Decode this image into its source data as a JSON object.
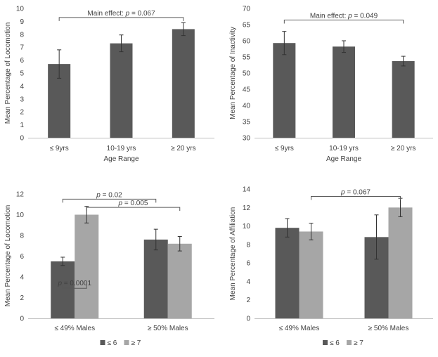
{
  "chart_data": [
    {
      "type": "bar",
      "panel": "top-left",
      "categories": [
        "≤ 9yrs",
        "10-19 yrs",
        "≥ 20 yrs"
      ],
      "series": [
        {
          "name": "Locomotion",
          "values": [
            5.7,
            7.3,
            8.4
          ],
          "errors": [
            1.1,
            0.65,
            0.5
          ],
          "color": "#595959"
        }
      ],
      "xlabel": "Age Range",
      "ylabel": "Mean Percentage of Locomotion",
      "ylim": [
        0,
        10
      ],
      "yticks": [
        0,
        1,
        2,
        3,
        4,
        5,
        6,
        7,
        8,
        9,
        10
      ],
      "annotations": [
        {
          "prefix": "Main effect: ",
          "p": "p",
          "suffix": " = 0.067",
          "from": 0,
          "to": 2,
          "level": 9.3
        }
      ]
    },
    {
      "type": "bar",
      "panel": "top-right",
      "categories": [
        "≤ 9yrs",
        "10-19 yrs",
        "≥ 20 yrs"
      ],
      "series": [
        {
          "name": "Inactivity",
          "values": [
            59.3,
            58.2,
            53.7
          ],
          "errors": [
            3.6,
            1.8,
            1.5
          ],
          "color": "#595959"
        }
      ],
      "xlabel": "Age Range",
      "ylabel": "Mean Percentage of Inactivity",
      "ylim": [
        30,
        70
      ],
      "yticks": [
        30,
        35,
        40,
        45,
        50,
        55,
        60,
        65,
        70
      ],
      "annotations": [
        {
          "prefix": "Main effect: ",
          "p": "p",
          "suffix": " = 0.049",
          "from": 0,
          "to": 2,
          "level": 66.4
        }
      ]
    },
    {
      "type": "bar",
      "panel": "bottom-left",
      "categories": [
        "≤ 49% Males",
        "≥ 50% Males"
      ],
      "series": [
        {
          "name": "≤ 6",
          "values": [
            5.5,
            7.6
          ],
          "errors": [
            0.4,
            1.0
          ],
          "color": "#595959"
        },
        {
          "name": "≥ 7",
          "values": [
            10.0,
            7.2
          ],
          "errors": [
            0.8,
            0.7
          ],
          "color": "#a6a6a6"
        }
      ],
      "ylabel": "Mean Percentage of Locomotion",
      "ylim": [
        0,
        12
      ],
      "yticks": [
        0,
        2,
        4,
        6,
        8,
        10,
        12
      ],
      "legend": [
        "≤ 6",
        "≥ 7"
      ],
      "annotations": [
        {
          "prefix": "",
          "p": "p",
          "suffix": " = 0.02",
          "from": [
            0,
            0
          ],
          "to": [
            1,
            0
          ],
          "level": 11.5
        },
        {
          "prefix": "",
          "p": "p",
          "suffix": " = 0.005",
          "from": [
            0,
            1
          ],
          "to": [
            1,
            1
          ],
          "level": 10.7
        },
        {
          "prefix": "",
          "p": "p",
          "suffix": " = 0.0001",
          "from": [
            0,
            0
          ],
          "to": [
            0,
            1
          ],
          "level": 2.9,
          "below": true
        }
      ]
    },
    {
      "type": "bar",
      "panel": "bottom-right",
      "categories": [
        "≤ 49% Males",
        "≥ 50% Males"
      ],
      "series": [
        {
          "name": "≤ 6",
          "values": [
            9.8,
            8.8
          ],
          "errors": [
            1.0,
            2.4
          ],
          "color": "#595959"
        },
        {
          "name": "≥ 7",
          "values": [
            9.4,
            12.0
          ],
          "errors": [
            0.9,
            1.0
          ],
          "color": "#a6a6a6"
        }
      ],
      "ylabel": "Mean Percentage of Affiliation",
      "ylim": [
        0,
        14
      ],
      "yticks": [
        0,
        2,
        4,
        6,
        8,
        10,
        12,
        14
      ],
      "legend": [
        "≤ 6",
        "≥ 7"
      ],
      "annotations": [
        {
          "prefix": "",
          "p": "p",
          "suffix": " = 0.067",
          "from": [
            0,
            1
          ],
          "to": [
            1,
            1
          ],
          "level": 13.2
        }
      ]
    }
  ]
}
